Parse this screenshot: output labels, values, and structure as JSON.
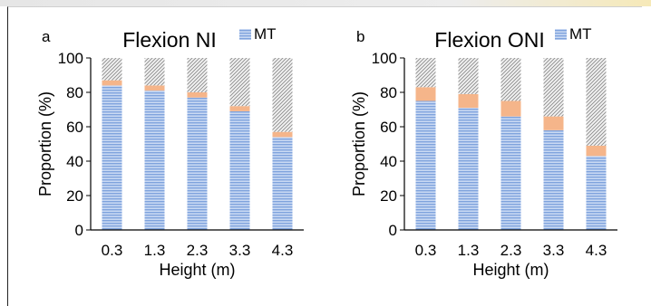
{
  "chart_data": [
    {
      "panel_label": "a",
      "type": "bar",
      "stacked": true,
      "title": "Flexion NI",
      "legend": {
        "label": "MT",
        "placement": "top-right"
      },
      "categories": [
        "0.3",
        "1.3",
        "2.3",
        "3.3",
        "4.3"
      ],
      "series": [
        {
          "name": "MT",
          "values": [
            84,
            81,
            77,
            69,
            54
          ],
          "pattern": "horizontal-lines",
          "color": "#8fb1e6"
        },
        {
          "values": [
            3,
            3,
            3,
            3,
            3
          ],
          "pattern": "solid",
          "color": "#f5b58a"
        },
        {
          "values": [
            13,
            16,
            20,
            28,
            43
          ],
          "pattern": "hatched",
          "color": "#9a9a9a"
        }
      ],
      "xlabel": "Height (m)",
      "ylabel": "Proportion (%)",
      "yticks": [
        "0",
        "20",
        "40",
        "60",
        "80",
        "100"
      ],
      "ylim": [
        0,
        100
      ],
      "grid": false
    },
    {
      "panel_label": "b",
      "type": "bar",
      "stacked": true,
      "title": "Flexion ONI",
      "legend": {
        "label": "MT",
        "placement": "top-right"
      },
      "categories": [
        "0.3",
        "1.3",
        "2.3",
        "3.3",
        "4.3"
      ],
      "series": [
        {
          "name": "MT",
          "values": [
            75,
            71,
            66,
            58,
            43
          ],
          "pattern": "horizontal-lines",
          "color": "#8fb1e6"
        },
        {
          "values": [
            8,
            8,
            9,
            8,
            6
          ],
          "pattern": "solid",
          "color": "#f5b58a"
        },
        {
          "values": [
            17,
            21,
            25,
            34,
            51
          ],
          "pattern": "hatched",
          "color": "#9a9a9a"
        }
      ],
      "xlabel": "Height (m)",
      "ylabel": "Proportion (%)",
      "yticks": [
        "0",
        "20",
        "40",
        "60",
        "80",
        "100"
      ],
      "ylim": [
        0,
        100
      ],
      "grid": false
    }
  ]
}
